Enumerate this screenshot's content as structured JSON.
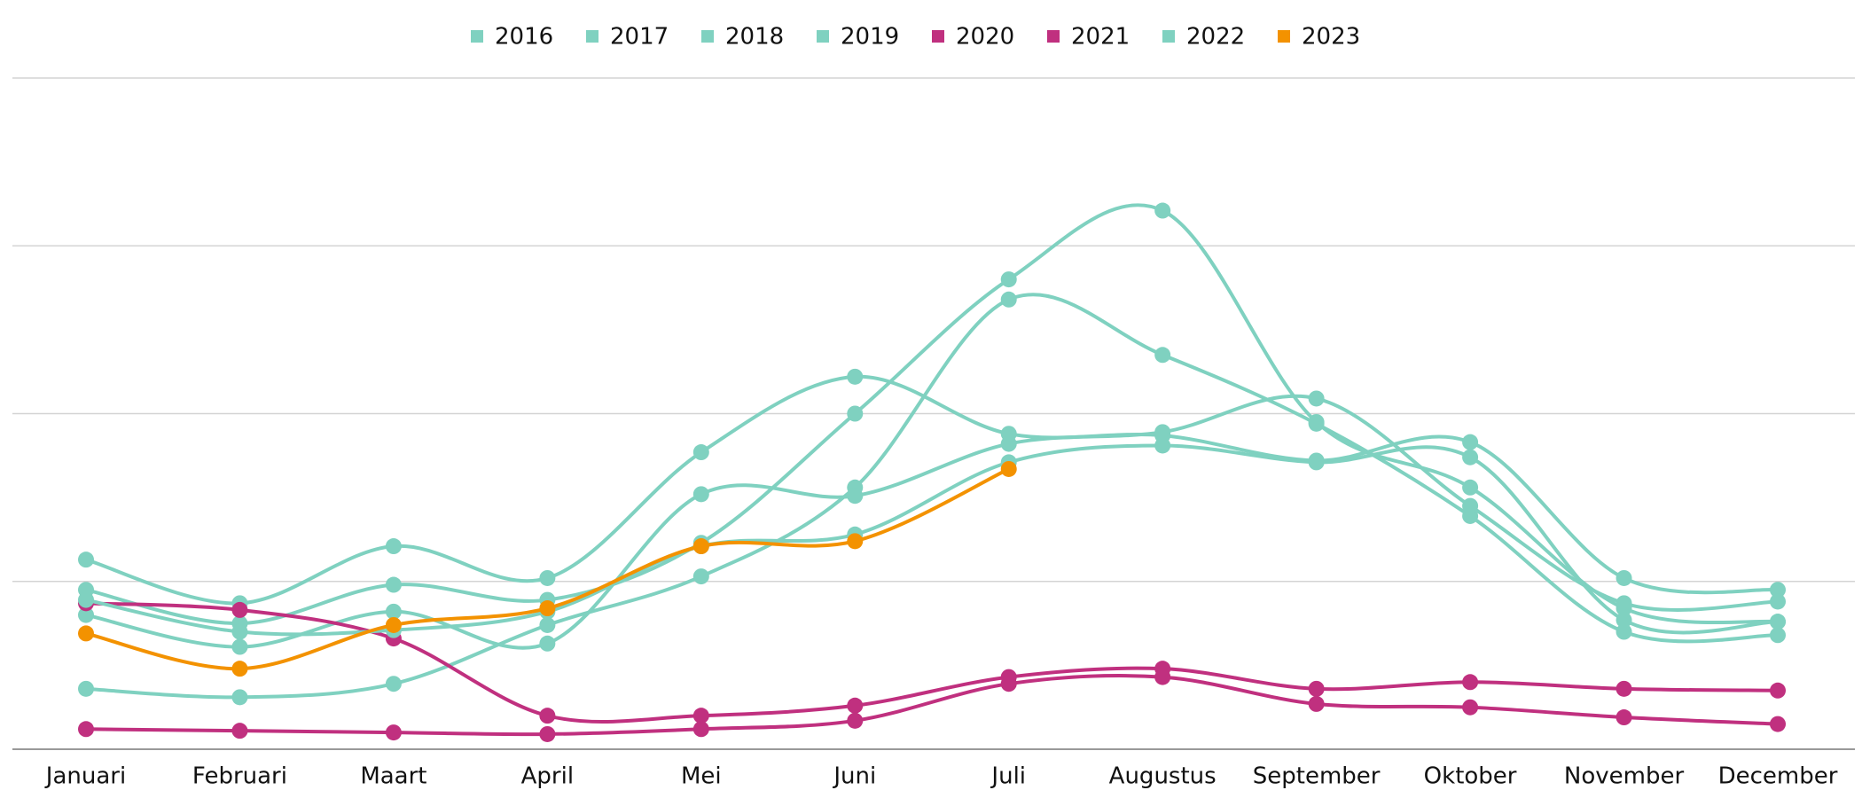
{
  "chart_data": {
    "type": "line",
    "categories": [
      "Januari",
      "Februari",
      "Maart",
      "April",
      "Mei",
      "Juni",
      "Juli",
      "Augustus",
      "September",
      "Oktober",
      "November",
      "December"
    ],
    "series": [
      {
        "name": "2016",
        "color": "#7fd1c0",
        "values": [
          0.95,
          0.75,
          0.98,
          0.89,
          1.23,
          2.0,
          2.8,
          3.21,
          1.95,
          1.56,
          0.84,
          0.76
        ]
      },
      {
        "name": "2017",
        "color": "#7fd1c0",
        "values": [
          0.36,
          0.31,
          0.39,
          0.74,
          1.03,
          1.56,
          2.68,
          2.35,
          1.94,
          1.39,
          0.7,
          0.68
        ]
      },
      {
        "name": "2018",
        "color": "#7fd1c0",
        "values": [
          1.13,
          0.87,
          1.21,
          1.02,
          1.77,
          2.22,
          1.88,
          1.87,
          1.72,
          1.83,
          1.02,
          0.95
        ]
      },
      {
        "name": "2019",
        "color": "#7fd1c0",
        "values": [
          0.8,
          0.61,
          0.82,
          0.63,
          1.52,
          1.51,
          1.82,
          1.89,
          2.09,
          1.45,
          0.87,
          0.88
        ]
      },
      {
        "name": "2020",
        "color": "#c0307f",
        "values": [
          0.87,
          0.83,
          0.66,
          0.2,
          0.2,
          0.26,
          0.43,
          0.48,
          0.36,
          0.4,
          0.36,
          0.35
        ]
      },
      {
        "name": "2021",
        "color": "#c0307f",
        "values": [
          0.12,
          0.11,
          0.1,
          0.09,
          0.12,
          0.17,
          0.39,
          0.43,
          0.27,
          0.25,
          0.19,
          0.15
        ]
      },
      {
        "name": "2022",
        "color": "#7fd1c0",
        "values": [
          0.89,
          0.7,
          0.71,
          0.82,
          1.21,
          1.28,
          1.71,
          1.81,
          1.71,
          1.74,
          0.77,
          0.76
        ]
      },
      {
        "name": "2023",
        "color": "#f39200",
        "values": [
          0.69,
          0.48,
          0.74,
          0.84,
          1.21,
          1.24,
          1.67,
          null,
          null,
          null,
          null,
          null
        ]
      }
    ],
    "ylim": [
      0,
      4
    ],
    "yticks": [
      0,
      1,
      2,
      3,
      4
    ],
    "grid": true,
    "legend": "top"
  }
}
